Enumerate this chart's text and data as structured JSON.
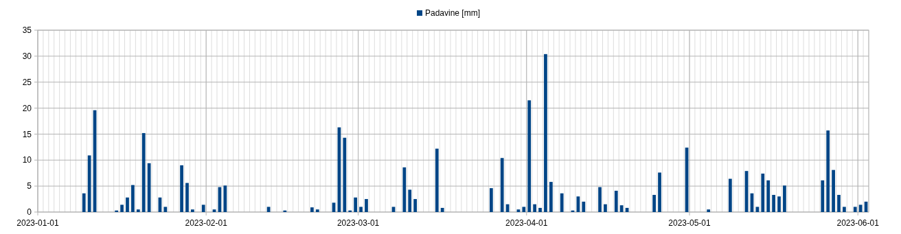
{
  "chart_data": {
    "type": "bar",
    "x": [
      "2023-01-09",
      "2023-01-10",
      "2023-01-11",
      "2023-01-15",
      "2023-01-16",
      "2023-01-17",
      "2023-01-18",
      "2023-01-19",
      "2023-01-20",
      "2023-01-21",
      "2023-01-23",
      "2023-01-24",
      "2023-01-27",
      "2023-01-28",
      "2023-01-29",
      "2023-01-31",
      "2023-02-02",
      "2023-02-03",
      "2023-02-04",
      "2023-02-12",
      "2023-02-15",
      "2023-02-20",
      "2023-02-21",
      "2023-02-24",
      "2023-02-25",
      "2023-02-26",
      "2023-02-27",
      "2023-02-28",
      "2023-03-01",
      "2023-03-02",
      "2023-03-07",
      "2023-03-09",
      "2023-03-10",
      "2023-03-11",
      "2023-03-15",
      "2023-03-16",
      "2023-03-25",
      "2023-03-27",
      "2023-03-28",
      "2023-03-30",
      "2023-03-31",
      "2023-04-01",
      "2023-04-02",
      "2023-04-03",
      "2023-04-04",
      "2023-04-05",
      "2023-04-07",
      "2023-04-09",
      "2023-04-10",
      "2023-04-11",
      "2023-04-14",
      "2023-04-15",
      "2023-04-17",
      "2023-04-18",
      "2023-04-19",
      "2023-04-24",
      "2023-04-25",
      "2023-04-30",
      "2023-05-04",
      "2023-05-08",
      "2023-05-11",
      "2023-05-12",
      "2023-05-13",
      "2023-05-14",
      "2023-05-15",
      "2023-05-16",
      "2023-05-17",
      "2023-05-18",
      "2023-05-25",
      "2023-05-26",
      "2023-05-27",
      "2023-05-28",
      "2023-05-29",
      "2023-05-31",
      "2023-06-01",
      "2023-06-02"
    ],
    "series": [
      {
        "name": "Padavine [mm]",
        "color": "#004586",
        "values": [
          3.6,
          10.9,
          19.6,
          0.3,
          1.4,
          2.8,
          5.2,
          0.5,
          15.2,
          9.4,
          2.8,
          1.0,
          9.0,
          5.6,
          0.5,
          1.4,
          0.5,
          4.8,
          5.1,
          1.0,
          0.3,
          0.9,
          0.5,
          1.8,
          16.3,
          14.3,
          0.3,
          2.8,
          1.0,
          2.5,
          1.0,
          8.6,
          4.3,
          2.5,
          12.2,
          0.8,
          4.6,
          10.4,
          1.5,
          0.5,
          1.0,
          21.5,
          1.5,
          0.8,
          30.4,
          5.8,
          3.6,
          0.3,
          3.0,
          2.0,
          4.8,
          1.5,
          4.1,
          1.3,
          0.8,
          3.3,
          7.6,
          12.4,
          0.5,
          6.4,
          7.9,
          3.6,
          1.0,
          7.4,
          6.1,
          3.3,
          3.0,
          5.1,
          6.1,
          15.7,
          8.1,
          3.3,
          1.0,
          1.0,
          1.4,
          2.0
        ]
      }
    ],
    "xlim": [
      "2023-01-01",
      "2023-06-03"
    ],
    "xticks": [
      "2023-01-01",
      "2023-02-01",
      "2023-03-01",
      "2023-04-01",
      "2023-05-01",
      "2023-06-01"
    ],
    "ylim": [
      0,
      35
    ],
    "yticks": [
      0,
      5,
      10,
      15,
      20,
      25,
      30,
      35
    ],
    "grid": true,
    "legend": "top"
  }
}
